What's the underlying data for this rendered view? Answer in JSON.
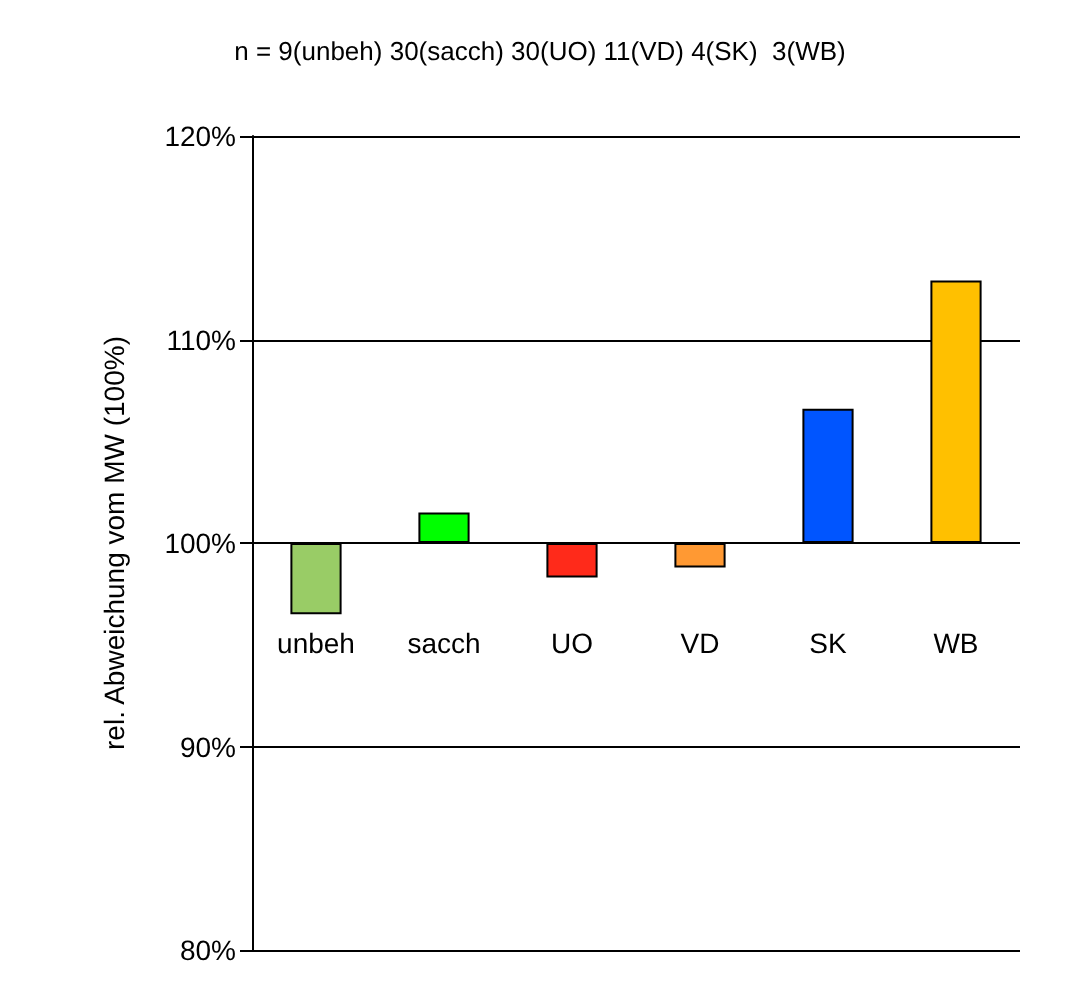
{
  "chart_data": {
    "type": "bar",
    "title": "n = 9(unbeh) 30(sacch) 30(UO) 11(VD) 4(SK)  3(WB)",
    "ylabel": "rel. Abweichung vom MW (100%)",
    "categories": [
      "unbeh",
      "sacch",
      "UO",
      "VD",
      "SK",
      "WB"
    ],
    "base": [
      100,
      100,
      100,
      100,
      100,
      100
    ],
    "values": [
      -3.5,
      1.5,
      -1.7,
      -1.2,
      6.6,
      12.9
    ],
    "colors": [
      "#99cc66",
      "#00ff00",
      "#ff2a1a",
      "#ff9933",
      "#0055ff",
      "#ffc000"
    ],
    "ylim": [
      80,
      120
    ],
    "yticks": [
      {
        "value": 80,
        "label": "80%"
      },
      {
        "value": 90,
        "label": "90%"
      },
      {
        "value": 100,
        "label": "100%"
      },
      {
        "value": 110,
        "label": "110%"
      },
      {
        "value": 120,
        "label": "120%"
      }
    ],
    "grid": "y"
  }
}
